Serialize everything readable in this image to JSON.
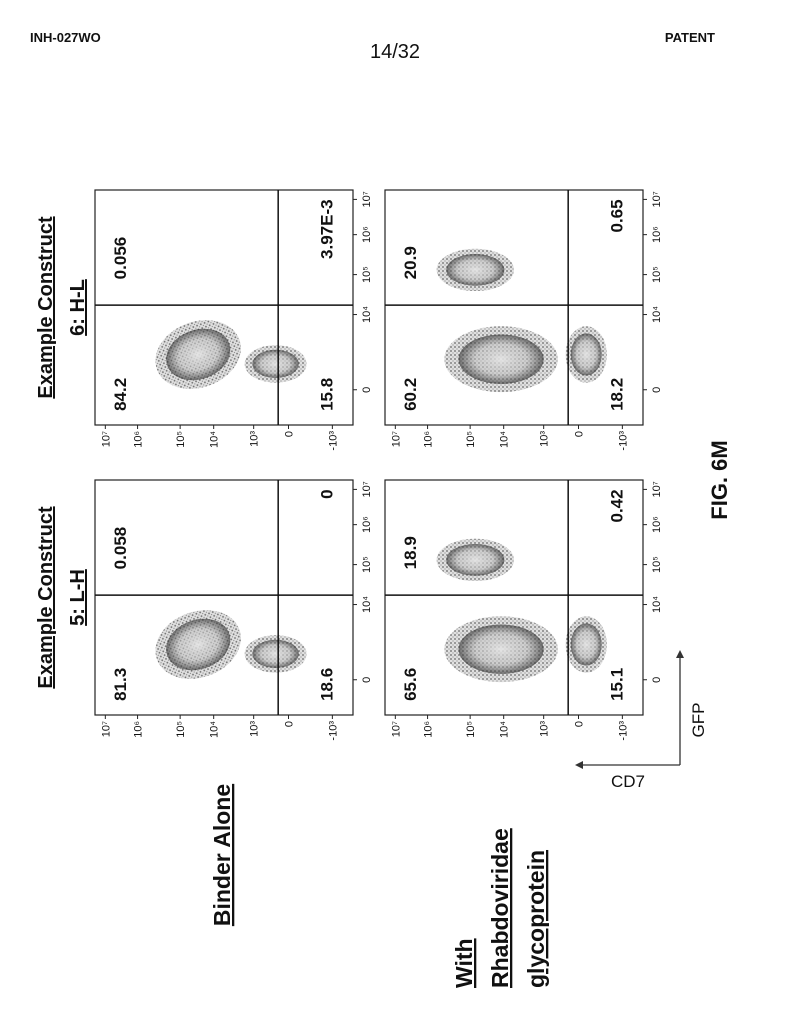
{
  "header": {
    "left": "INH-027WO",
    "page": "14/32",
    "right": "PATENT"
  },
  "figure": {
    "columns": [
      {
        "title": "Example Construct",
        "subtitle": "5: L-H"
      },
      {
        "title": "Example Construct",
        "subtitle": "6: H-L"
      }
    ],
    "rows": [
      {
        "lines": [
          "Binder Alone"
        ]
      },
      {
        "lines": [
          "With",
          "Rhabdoviridae",
          "glycoprotein"
        ]
      }
    ],
    "y_ticks": [
      "10⁷",
      "10⁶",
      "10⁵",
      "10⁴",
      "10³",
      "0",
      "-10³"
    ],
    "x_ticks": [
      "0",
      "10⁴",
      "10⁵",
      "10⁶",
      "10⁷"
    ],
    "panels": [
      {
        "ul": "81.3",
        "ur": "0.058",
        "ll": "18.6",
        "lr": "0"
      },
      {
        "ul": "84.2",
        "ur": "0.056",
        "ll": "15.8",
        "lr": "3.97E-3"
      },
      {
        "ul": "65.6",
        "ur": "18.9",
        "ll": "15.1",
        "lr": "0.42"
      },
      {
        "ul": "60.2",
        "ur": "20.9",
        "ll": "18.2",
        "lr": "0.65"
      }
    ],
    "axis_labels": {
      "y": "CD7",
      "x": "GFP"
    },
    "caption": "FIG. 6M"
  }
}
